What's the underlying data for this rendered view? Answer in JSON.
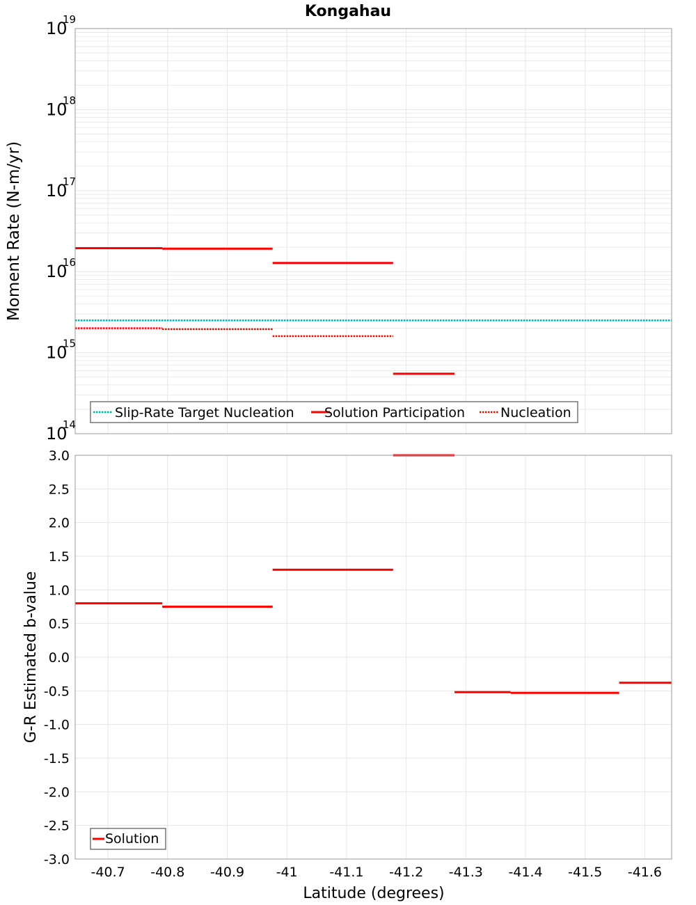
{
  "title": "Kongahau",
  "colors": {
    "solution": "#ff0000",
    "target": "#00b0b0",
    "grid": "#e6e6e6",
    "frame": "#999999"
  },
  "chart_data": [
    {
      "type": "line",
      "name": "moment-rate",
      "title": "Kongahau",
      "ylabel": "Moment Rate (N-m/yr)",
      "xlabel": "",
      "yscale": "log",
      "ylim": [
        100000000000000.0,
        1e+19
      ],
      "xlim": [
        -40.645,
        -41.645
      ],
      "grid": true,
      "legend_position": "bottom-left",
      "y_ticks": [
        {
          "base": "10",
          "exp": "14"
        },
        {
          "base": "10",
          "exp": "15"
        },
        {
          "base": "10",
          "exp": "16"
        },
        {
          "base": "10",
          "exp": "17"
        },
        {
          "base": "10",
          "exp": "18"
        },
        {
          "base": "10",
          "exp": "19"
        }
      ],
      "series": [
        {
          "name": "Slip-Rate Target Nucleation",
          "color": "#00b0b0",
          "style": "dotted",
          "segments": [
            [
              -40.645,
              -41.645,
              2500000000000000.0
            ]
          ]
        },
        {
          "name": "Solution Participation",
          "color": "#ff0000",
          "style": "solid",
          "segments": [
            [
              -40.645,
              -40.791,
              1.95e+16
            ],
            [
              -40.791,
              -40.976,
              1.92e+16
            ],
            [
              -40.976,
              -41.178,
              1.28e+16
            ],
            [
              -41.178,
              -41.281,
              550000000000000.0
            ]
          ]
        },
        {
          "name": "Nucleation",
          "color": "#ff0000",
          "style": "dotted",
          "segments": [
            [
              -40.645,
              -40.791,
              2000000000000000.0
            ],
            [
              -40.791,
              -40.976,
              1950000000000000.0
            ],
            [
              -40.976,
              -41.178,
              1600000000000000.0
            ]
          ]
        }
      ]
    },
    {
      "type": "line",
      "name": "b-value",
      "ylabel": "G-R Estimated b-value",
      "xlabel": "Latitude (degrees)",
      "ylim": [
        -3.0,
        3.0
      ],
      "xlim": [
        -40.645,
        -41.645
      ],
      "grid": true,
      "legend_position": "bottom-left",
      "y_ticks": [
        "-3.0",
        "-2.5",
        "-2.0",
        "-1.5",
        "-1.0",
        "-0.5",
        "0.0",
        "0.5",
        "1.0",
        "1.5",
        "2.0",
        "2.5",
        "3.0"
      ],
      "x_ticks": [
        "-40.7",
        "-40.8",
        "-40.9",
        "-41",
        "-41.1",
        "-41.2",
        "-41.3",
        "-41.4",
        "-41.5",
        "-41.6"
      ],
      "series": [
        {
          "name": "Solution",
          "color": "#ff0000",
          "style": "solid",
          "segments": [
            [
              -40.645,
              -40.791,
              0.8
            ],
            [
              -40.791,
              -40.976,
              0.75
            ],
            [
              -40.976,
              -41.178,
              1.3
            ],
            [
              -41.178,
              -41.281,
              3.0
            ],
            [
              -41.281,
              -41.375,
              -0.52
            ],
            [
              -41.375,
              -41.557,
              -0.53
            ],
            [
              -41.557,
              -41.645,
              -0.38
            ]
          ]
        }
      ]
    }
  ]
}
